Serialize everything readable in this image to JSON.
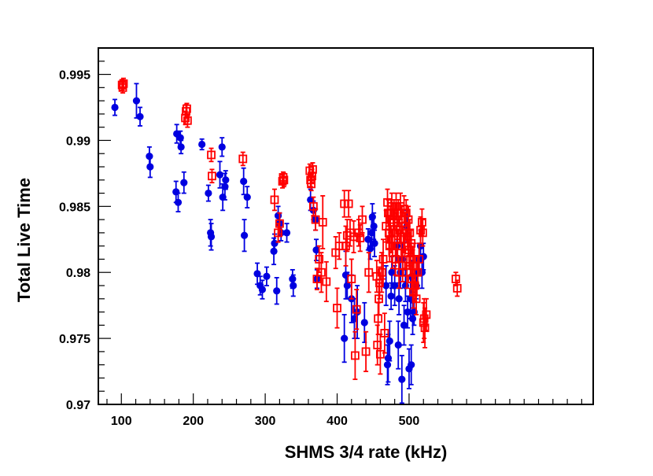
{
  "chart_data": {
    "type": "scatter",
    "title": "",
    "xlabel": "SHMS 3/4 rate (kHz)",
    "ylabel": "Total Live Time",
    "xlim": [
      68,
      756
    ],
    "ylim": [
      0.97,
      0.997
    ],
    "x_ticks": [
      100,
      200,
      300,
      400,
      500
    ],
    "x_tick_labels": [
      "100",
      "200",
      "300",
      "400",
      "500"
    ],
    "y_ticks": [
      0.97,
      0.975,
      0.98,
      0.985,
      0.99,
      0.995
    ],
    "y_tick_labels": [
      "0.97",
      "0.975",
      "0.98",
      "0.985",
      "0.99",
      "0.995"
    ],
    "grid": false,
    "series": [
      {
        "name": "blue filled circles",
        "color": "#0000e0",
        "marker": "filled-circle",
        "points": [
          [
            91,
            0.9925,
            0.0006
          ],
          [
            121,
            0.993,
            0.0013
          ],
          [
            126,
            0.9918,
            0.0007
          ],
          [
            139,
            0.9888,
            0.0007
          ],
          [
            140,
            0.988,
            0.0008
          ],
          [
            176,
            0.9861,
            0.0008
          ],
          [
            177,
            0.9905,
            0.0007
          ],
          [
            179,
            0.9853,
            0.0007
          ],
          [
            182,
            0.9902,
            0.0005
          ],
          [
            183,
            0.9895,
            0.0005
          ],
          [
            187,
            0.9868,
            0.0008
          ],
          [
            212,
            0.9897,
            0.0004
          ],
          [
            221,
            0.986,
            0.0006
          ],
          [
            224,
            0.983,
            0.001
          ],
          [
            225,
            0.9827,
            0.001
          ],
          [
            237,
            0.9874,
            0.001
          ],
          [
            240,
            0.9895,
            0.0007
          ],
          [
            241,
            0.9857,
            0.001
          ],
          [
            244,
            0.9865,
            0.001
          ],
          [
            245,
            0.987,
            0.0007
          ],
          [
            270,
            0.9869,
            0.001
          ],
          [
            271,
            0.9828,
            0.0012
          ],
          [
            275,
            0.9857,
            0.0008
          ],
          [
            289,
            0.9799,
            0.0008
          ],
          [
            293,
            0.979,
            0.0007
          ],
          [
            296,
            0.9787,
            0.0007
          ],
          [
            302,
            0.9797,
            0.0007
          ],
          [
            312,
            0.9816,
            0.001
          ],
          [
            313,
            0.9822,
            0.0007
          ],
          [
            316,
            0.9786,
            0.001
          ],
          [
            318,
            0.9843,
            0.0007
          ],
          [
            320,
            0.9837,
            0.0008
          ],
          [
            322,
            0.983,
            0.0006
          ],
          [
            330,
            0.983,
            0.0007
          ],
          [
            338,
            0.9795,
            0.0007
          ],
          [
            339,
            0.979,
            0.0008
          ],
          [
            363,
            0.9855,
            0.0008
          ],
          [
            367,
            0.9847,
            0.0007
          ],
          [
            370,
            0.984,
            0.0008
          ],
          [
            371,
            0.9817,
            0.0008
          ],
          [
            372,
            0.9795,
            0.0007
          ],
          [
            410,
            0.975,
            0.0018
          ],
          [
            412,
            0.9798,
            0.0018
          ],
          [
            414,
            0.979,
            0.001
          ],
          [
            420,
            0.978,
            0.0018
          ],
          [
            424,
            0.9765,
            0.0015
          ],
          [
            428,
            0.977,
            0.002
          ],
          [
            438,
            0.9762,
            0.0015
          ],
          [
            443,
            0.9825,
            0.0008
          ],
          [
            446,
            0.9818,
            0.0008
          ],
          [
            448,
            0.983,
            0.001
          ],
          [
            449,
            0.9842,
            0.001
          ],
          [
            451,
            0.9835,
            0.001
          ],
          [
            452,
            0.9822,
            0.001
          ],
          [
            468,
            0.979,
            0.0015
          ],
          [
            470,
            0.973,
            0.0015
          ],
          [
            471,
            0.9735,
            0.0018
          ],
          [
            473,
            0.9748,
            0.0015
          ],
          [
            475,
            0.9782,
            0.001
          ],
          [
            476,
            0.98,
            0.0012
          ],
          [
            480,
            0.979,
            0.0015
          ],
          [
            483,
            0.982,
            0.0012
          ],
          [
            485,
            0.9745,
            0.0018
          ],
          [
            486,
            0.978,
            0.0012
          ],
          [
            488,
            0.98,
            0.0012
          ],
          [
            490,
            0.9719,
            0.0018
          ],
          [
            491,
            0.981,
            0.0012
          ],
          [
            493,
            0.976,
            0.0015
          ],
          [
            495,
            0.979,
            0.0012
          ],
          [
            497,
            0.9835,
            0.0012
          ],
          [
            498,
            0.977,
            0.0012
          ],
          [
            500,
            0.9727,
            0.0015
          ],
          [
            502,
            0.978,
            0.0015
          ],
          [
            503,
            0.973,
            0.0015
          ],
          [
            504,
            0.9797,
            0.0012
          ],
          [
            505,
            0.9765,
            0.0012
          ],
          [
            507,
            0.977,
            0.001
          ],
          [
            510,
            0.979,
            0.001
          ],
          [
            512,
            0.98,
            0.001
          ],
          [
            514,
            0.981,
            0.0012
          ],
          [
            516,
            0.982,
            0.0012
          ],
          [
            518,
            0.98,
            0.0012
          ],
          [
            520,
            0.9812,
            0.001
          ]
        ]
      },
      {
        "name": "red open squares",
        "color": "#ff0000",
        "marker": "open-square",
        "points": [
          [
            101,
            0.9942,
            0.0004
          ],
          [
            102,
            0.994,
            0.0004
          ],
          [
            103,
            0.9943,
            0.0004
          ],
          [
            189,
            0.9917,
            0.0005
          ],
          [
            190,
            0.9922,
            0.0005
          ],
          [
            191,
            0.9924,
            0.0004
          ],
          [
            192,
            0.9915,
            0.0005
          ],
          [
            225,
            0.9889,
            0.0005
          ],
          [
            226,
            0.9873,
            0.0005
          ],
          [
            269,
            0.9886,
            0.0005
          ],
          [
            313,
            0.9855,
            0.0008
          ],
          [
            318,
            0.983,
            0.0007
          ],
          [
            320,
            0.9837,
            0.0008
          ],
          [
            324,
            0.9869,
            0.0005
          ],
          [
            325,
            0.9872,
            0.0004
          ],
          [
            326,
            0.987,
            0.0005
          ],
          [
            362,
            0.9877,
            0.0005
          ],
          [
            363,
            0.987,
            0.0005
          ],
          [
            364,
            0.9867,
            0.0005
          ],
          [
            365,
            0.9873,
            0.0005
          ],
          [
            366,
            0.9878,
            0.0005
          ],
          [
            367,
            0.985,
            0.0007
          ],
          [
            370,
            0.984,
            0.0008
          ],
          [
            372,
            0.9795,
            0.0008
          ],
          [
            375,
            0.981,
            0.001
          ],
          [
            378,
            0.98,
            0.0015
          ],
          [
            380,
            0.9838,
            0.002
          ],
          [
            385,
            0.9793,
            0.0015
          ],
          [
            398,
            0.9815,
            0.0012
          ],
          [
            400,
            0.9773,
            0.0015
          ],
          [
            403,
            0.982,
            0.001
          ],
          [
            410,
            0.9852,
            0.001
          ],
          [
            412,
            0.982,
            0.0015
          ],
          [
            414,
            0.9828,
            0.0012
          ],
          [
            416,
            0.9852,
            0.001
          ],
          [
            418,
            0.983,
            0.001
          ],
          [
            420,
            0.9795,
            0.0015
          ],
          [
            423,
            0.9827,
            0.0012
          ],
          [
            425,
            0.9737,
            0.0018
          ],
          [
            427,
            0.9772,
            0.0015
          ],
          [
            430,
            0.983,
            0.001
          ],
          [
            432,
            0.9826,
            0.001
          ],
          [
            435,
            0.984,
            0.001
          ],
          [
            440,
            0.974,
            0.0015
          ],
          [
            444,
            0.98,
            0.0015
          ],
          [
            455,
            0.9797,
            0.0012
          ],
          [
            456,
            0.9745,
            0.0015
          ],
          [
            457,
            0.9765,
            0.0012
          ],
          [
            458,
            0.978,
            0.0012
          ],
          [
            459,
            0.9792,
            0.0012
          ],
          [
            460,
            0.9738,
            0.0015
          ],
          [
            462,
            0.98,
            0.0015
          ],
          [
            464,
            0.981,
            0.0015
          ],
          [
            466,
            0.9754,
            0.0015
          ],
          [
            468,
            0.9835,
            0.0012
          ],
          [
            470,
            0.9853,
            0.001
          ],
          [
            471,
            0.9845,
            0.001
          ],
          [
            472,
            0.983,
            0.0012
          ],
          [
            473,
            0.982,
            0.0012
          ],
          [
            474,
            0.984,
            0.001
          ],
          [
            475,
            0.9825,
            0.001
          ],
          [
            476,
            0.985,
            0.001
          ],
          [
            477,
            0.9815,
            0.0012
          ],
          [
            478,
            0.9838,
            0.001
          ],
          [
            479,
            0.9845,
            0.001
          ],
          [
            480,
            0.983,
            0.0012
          ],
          [
            481,
            0.981,
            0.0012
          ],
          [
            482,
            0.985,
            0.001
          ],
          [
            483,
            0.9835,
            0.001
          ],
          [
            484,
            0.982,
            0.0012
          ],
          [
            485,
            0.9845,
            0.001
          ],
          [
            486,
            0.98,
            0.0012
          ],
          [
            487,
            0.9832,
            0.001
          ],
          [
            488,
            0.985,
            0.001
          ],
          [
            489,
            0.982,
            0.0012
          ],
          [
            490,
            0.984,
            0.001
          ],
          [
            491,
            0.9805,
            0.0012
          ],
          [
            492,
            0.9825,
            0.001
          ],
          [
            493,
            0.9848,
            0.001
          ],
          [
            494,
            0.9815,
            0.0012
          ],
          [
            495,
            0.9835,
            0.001
          ],
          [
            496,
            0.9845,
            0.001
          ],
          [
            497,
            0.98,
            0.0012
          ],
          [
            498,
            0.9827,
            0.001
          ],
          [
            499,
            0.984,
            0.001
          ],
          [
            500,
            0.9817,
            0.0012
          ],
          [
            501,
            0.983,
            0.001
          ],
          [
            502,
            0.981,
            0.0012
          ],
          [
            503,
            0.9822,
            0.001
          ],
          [
            504,
            0.9795,
            0.0012
          ],
          [
            505,
            0.9805,
            0.0012
          ],
          [
            506,
            0.9785,
            0.0012
          ],
          [
            507,
            0.981,
            0.0012
          ],
          [
            508,
            0.979,
            0.0012
          ],
          [
            510,
            0.978,
            0.0012
          ],
          [
            512,
            0.98,
            0.0012
          ],
          [
            514,
            0.981,
            0.0012
          ],
          [
            516,
            0.9832,
            0.001
          ],
          [
            518,
            0.9838,
            0.001
          ],
          [
            519,
            0.983,
            0.001
          ],
          [
            520,
            0.9762,
            0.0015
          ],
          [
            521,
            0.9765,
            0.0015
          ],
          [
            522,
            0.9758,
            0.0015
          ],
          [
            524,
            0.9768,
            0.0012
          ],
          [
            565,
            0.9795,
            0.0005
          ],
          [
            567,
            0.9788,
            0.0006
          ]
        ]
      }
    ]
  }
}
